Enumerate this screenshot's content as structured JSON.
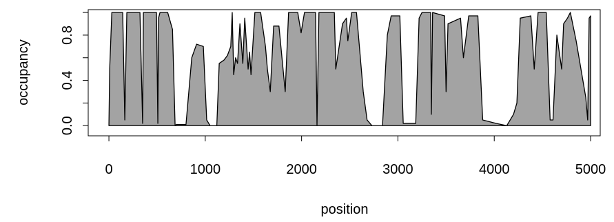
{
  "chart_data": {
    "type": "area",
    "xlabel": "position",
    "ylabel": "occupancy",
    "x": [
      0,
      8,
      30,
      143,
      165,
      186,
      200,
      322,
      350,
      358,
      372,
      494,
      508,
      515,
      530,
      560,
      610,
      660,
      687,
      700,
      800,
      860,
      910,
      980,
      1015,
      1050,
      1120,
      1145,
      1195,
      1230,
      1265,
      1280,
      1295,
      1315,
      1335,
      1360,
      1390,
      1410,
      1445,
      1460,
      1475,
      1515,
      1575,
      1625,
      1645,
      1675,
      1710,
      1765,
      1830,
      1865,
      1960,
      1995,
      2030,
      2145,
      2160,
      2180,
      2340,
      2355,
      2425,
      2465,
      2480,
      2520,
      2570,
      2640,
      2680,
      2730,
      2840,
      2890,
      2930,
      3020,
      3055,
      3185,
      3220,
      3250,
      3340,
      3347,
      3360,
      3485,
      3500,
      3520,
      3650,
      3680,
      3735,
      3830,
      3880,
      4020,
      4130,
      4200,
      4235,
      4270,
      4380,
      4415,
      4455,
      4540,
      4580,
      4610,
      4650,
      4700,
      4720,
      4760,
      4790,
      4850,
      4950,
      4970,
      4985,
      5000
    ],
    "values": [
      0,
      0.5,
      1.0,
      1.0,
      0.05,
      1.0,
      1.0,
      1.0,
      0.02,
      1.0,
      1.0,
      1.0,
      0.02,
      0.95,
      1.0,
      1.0,
      1.0,
      0.85,
      0,
      0.01,
      0.01,
      0.6,
      0.72,
      0.7,
      0.05,
      0,
      0,
      0.55,
      0.58,
      0.62,
      0.7,
      1.0,
      0.45,
      0.6,
      0.55,
      0.9,
      0.55,
      0.95,
      0.5,
      0.65,
      0.45,
      1.0,
      1.0,
      0.7,
      0.5,
      0.3,
      0.88,
      0.88,
      0.3,
      1.0,
      1.0,
      0.82,
      1.0,
      1.0,
      0,
      1.0,
      1.0,
      0.5,
      0.9,
      0.95,
      0.75,
      1.0,
      1.0,
      0.3,
      0.05,
      0,
      0,
      0.8,
      0.97,
      0.97,
      0.02,
      0.02,
      0.95,
      1.0,
      1.0,
      0.1,
      1.0,
      0.97,
      0.3,
      0.9,
      0.95,
      0.6,
      0.97,
      0.97,
      0.05,
      0.02,
      0,
      0.1,
      0.2,
      0.95,
      0.97,
      0.5,
      1.0,
      1.0,
      0.05,
      0.05,
      0.8,
      0.5,
      0.9,
      0.95,
      1.0,
      0.75,
      0.25,
      0.05,
      0.95,
      0.97
    ],
    "color": "#a3a3a3",
    "xlim": [
      -215,
      5100
    ],
    "ylim": [
      -0.09,
      1.025
    ],
    "xticks": [
      0,
      1000,
      2000,
      3000,
      4000,
      5000
    ],
    "yticks": [
      {
        "value": 0,
        "label": "0.0"
      },
      {
        "value": 0.4,
        "label": "0.4"
      },
      {
        "value": 0.8,
        "label": "0.8"
      }
    ],
    "yminorticks": [
      0.2,
      0.6,
      1.0
    ]
  }
}
